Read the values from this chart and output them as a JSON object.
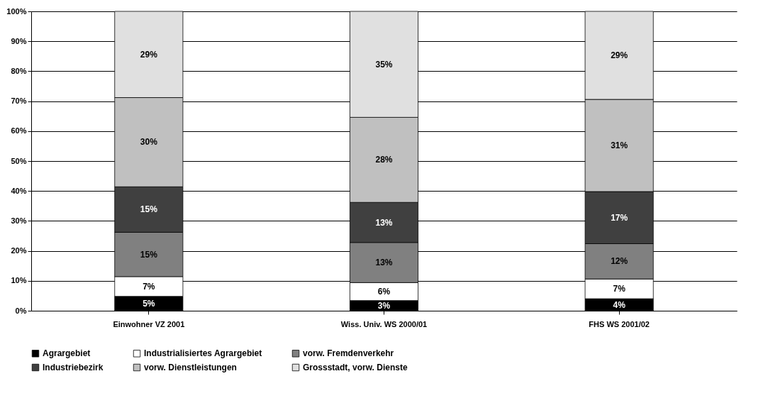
{
  "chart_data": {
    "type": "bar",
    "stacked": true,
    "categories": [
      "Einwohner VZ 2001",
      "Wiss. Univ. WS 2000/01",
      "FHS WS 2001/02"
    ],
    "series": [
      {
        "name": "Agrargebiet",
        "color": "#000000",
        "values": [
          4.8,
          3.4,
          4.0
        ],
        "value_labels": [
          "5%",
          "3%",
          "4%"
        ]
      },
      {
        "name": "Industrialisiertes Agrargebiet",
        "color": "#ffffff",
        "values": [
          6.6,
          6.0,
          6.6
        ],
        "value_labels": [
          "7%",
          "6%",
          "7%"
        ]
      },
      {
        "name": "vorw. Fremdenverkehr",
        "color": "#808080",
        "values": [
          14.8,
          13.4,
          11.8
        ],
        "value_labels": [
          "15%",
          "13%",
          "12%"
        ]
      },
      {
        "name": "Industriebezirk",
        "color": "#404040",
        "values": [
          15.2,
          13.4,
          17.4
        ],
        "value_labels": [
          "15%",
          "13%",
          "17%"
        ]
      },
      {
        "name": "vorw. Dienstleistungen",
        "color": "#c0c0c0",
        "values": [
          29.8,
          28.4,
          30.8
        ],
        "value_labels": [
          "30%",
          "28%",
          "31%"
        ]
      },
      {
        "name": "Grossstadt, vorw. Dienste",
        "color": "#e0e0e0",
        "values": [
          28.8,
          35.4,
          29.4
        ],
        "value_labels": [
          "29%",
          "35%",
          "29%"
        ]
      }
    ],
    "ylim": [
      0,
      100
    ],
    "yticks": [
      {
        "value": 0,
        "label": "0%"
      },
      {
        "value": 10,
        "label": "10%"
      },
      {
        "value": 20,
        "label": "20%"
      },
      {
        "value": 30,
        "label": "30%"
      },
      {
        "value": 40,
        "label": "40%"
      },
      {
        "value": 50,
        "label": "50%"
      },
      {
        "value": 60,
        "label": "60%"
      },
      {
        "value": 70,
        "label": "70%"
      },
      {
        "value": 80,
        "label": "80%"
      },
      {
        "value": 90,
        "label": "90%"
      },
      {
        "value": 100,
        "label": "100%"
      }
    ],
    "grid": "y",
    "legend": "bottom"
  }
}
